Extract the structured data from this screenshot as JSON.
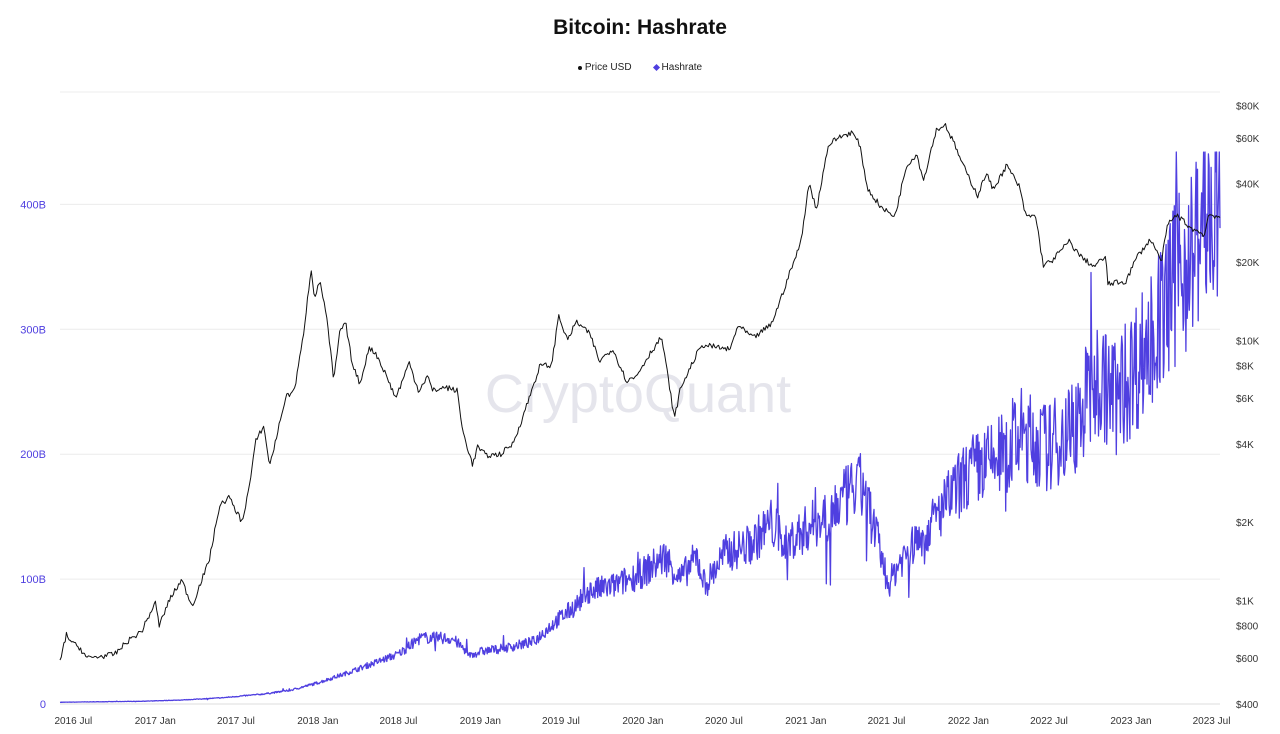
{
  "chart_data": {
    "type": "line",
    "title": "Bitcoin: Hashrate",
    "watermark": "CryptoQuant",
    "legend": [
      {
        "name": "Price USD",
        "color": "#111111",
        "marker": "dot"
      },
      {
        "name": "Hashrate",
        "color": "#4f3fe0",
        "marker": "diamond"
      }
    ],
    "legend_position": "top-center",
    "grid": true,
    "x_ticks": [
      "2016 Jul",
      "2017 Jan",
      "2017 Jul",
      "2018 Jan",
      "2018 Jul",
      "2019 Jan",
      "2019 Jul",
      "2020 Jan",
      "2020 Jul",
      "2021 Jan",
      "2021 Jul",
      "2022 Jan",
      "2022 Jul",
      "2023 Jan",
      "2023 Jul"
    ],
    "x_range": [
      "2016-06-01",
      "2023-07-20"
    ],
    "y_left": {
      "label": "",
      "range": [
        0,
        490000000000
      ],
      "ticks": [
        {
          "value": 0,
          "label": "0"
        },
        {
          "value": 100000000000,
          "label": "100B"
        },
        {
          "value": 200000000000,
          "label": "200B"
        },
        {
          "value": 300000000000,
          "label": "300B"
        },
        {
          "value": 400000000000,
          "label": "400B"
        }
      ],
      "color": "#4f3fe0"
    },
    "y_right": {
      "label": "",
      "scale": "log",
      "range": [
        400,
        90000
      ],
      "ticks": [
        {
          "value": 400,
          "label": "$400"
        },
        {
          "value": 600,
          "label": "$600"
        },
        {
          "value": 800,
          "label": "$800"
        },
        {
          "value": 1000,
          "label": "$1K"
        },
        {
          "value": 2000,
          "label": "$2K"
        },
        {
          "value": 4000,
          "label": "$4K"
        },
        {
          "value": 6000,
          "label": "$6K"
        },
        {
          "value": 8000,
          "label": "$8K"
        },
        {
          "value": 10000,
          "label": "$10K"
        },
        {
          "value": 20000,
          "label": "$20K"
        },
        {
          "value": 40000,
          "label": "$40K"
        },
        {
          "value": 60000,
          "label": "$60K"
        },
        {
          "value": 80000,
          "label": "$80K"
        }
      ],
      "color": "#333333"
    },
    "series": [
      {
        "name": "Price USD",
        "axis": "right",
        "color": "#111111",
        "points": [
          [
            "2016-06-01",
            580
          ],
          [
            "2016-06-15",
            740
          ],
          [
            "2016-07-01",
            680
          ],
          [
            "2016-07-15",
            660
          ],
          [
            "2016-08-01",
            600
          ],
          [
            "2016-09-01",
            610
          ],
          [
            "2016-10-01",
            620
          ],
          [
            "2016-11-01",
            700
          ],
          [
            "2016-12-01",
            760
          ],
          [
            "2017-01-01",
            980
          ],
          [
            "2017-01-10",
            800
          ],
          [
            "2017-02-01",
            1000
          ],
          [
            "2017-03-01",
            1200
          ],
          [
            "2017-03-25",
            950
          ],
          [
            "2017-04-15",
            1200
          ],
          [
            "2017-05-01",
            1400
          ],
          [
            "2017-05-25",
            2300
          ],
          [
            "2017-06-15",
            2500
          ],
          [
            "2017-07-15",
            2000
          ],
          [
            "2017-08-01",
            2800
          ],
          [
            "2017-08-15",
            4100
          ],
          [
            "2017-09-01",
            4700
          ],
          [
            "2017-09-15",
            3300
          ],
          [
            "2017-10-01",
            4300
          ],
          [
            "2017-10-20",
            6000
          ],
          [
            "2017-11-10",
            6500
          ],
          [
            "2017-11-28",
            10000
          ],
          [
            "2017-12-17",
            19000
          ],
          [
            "2017-12-25",
            14500
          ],
          [
            "2018-01-06",
            17000
          ],
          [
            "2018-01-20",
            12500
          ],
          [
            "2018-02-06",
            7000
          ],
          [
            "2018-02-20",
            11000
          ],
          [
            "2018-03-05",
            11500
          ],
          [
            "2018-03-20",
            8000
          ],
          [
            "2018-04-06",
            6800
          ],
          [
            "2018-04-25",
            9300
          ],
          [
            "2018-05-10",
            9000
          ],
          [
            "2018-06-01",
            7500
          ],
          [
            "2018-06-25",
            6000
          ],
          [
            "2018-07-25",
            8200
          ],
          [
            "2018-08-15",
            6400
          ],
          [
            "2018-09-05",
            7300
          ],
          [
            "2018-09-15",
            6400
          ],
          [
            "2018-10-15",
            6600
          ],
          [
            "2018-11-10",
            6400
          ],
          [
            "2018-11-22",
            4500
          ],
          [
            "2018-12-15",
            3300
          ],
          [
            "2018-12-25",
            3900
          ],
          [
            "2019-01-15",
            3600
          ],
          [
            "2019-02-15",
            3650
          ],
          [
            "2019-03-15",
            4000
          ],
          [
            "2019-04-05",
            5000
          ],
          [
            "2019-05-15",
            8000
          ],
          [
            "2019-06-10",
            8000
          ],
          [
            "2019-06-26",
            12500
          ],
          [
            "2019-07-15",
            10000
          ],
          [
            "2019-08-05",
            11800
          ],
          [
            "2019-09-05",
            10500
          ],
          [
            "2019-09-25",
            8300
          ],
          [
            "2019-10-25",
            9300
          ],
          [
            "2019-11-25",
            7000
          ],
          [
            "2019-12-15",
            7200
          ],
          [
            "2020-01-15",
            8800
          ],
          [
            "2020-02-12",
            10300
          ],
          [
            "2020-03-12",
            5000
          ],
          [
            "2020-03-25",
            6500
          ],
          [
            "2020-04-30",
            8800
          ],
          [
            "2020-05-15",
            9600
          ],
          [
            "2020-06-15",
            9400
          ],
          [
            "2020-07-15",
            9200
          ],
          [
            "2020-08-01",
            11400
          ],
          [
            "2020-09-05",
            10200
          ],
          [
            "2020-10-15",
            11500
          ],
          [
            "2020-11-01",
            13700
          ],
          [
            "2020-11-25",
            18000
          ],
          [
            "2020-12-20",
            23500
          ],
          [
            "2021-01-08",
            40000
          ],
          [
            "2021-01-25",
            32000
          ],
          [
            "2021-02-20",
            56000
          ],
          [
            "2021-03-13",
            60000
          ],
          [
            "2021-04-14",
            63000
          ],
          [
            "2021-05-01",
            57000
          ],
          [
            "2021-05-20",
            38000
          ],
          [
            "2021-06-22",
            32000
          ],
          [
            "2021-07-20",
            30000
          ],
          [
            "2021-08-15",
            47000
          ],
          [
            "2021-09-07",
            52000
          ],
          [
            "2021-09-22",
            41000
          ],
          [
            "2021-10-20",
            64000
          ],
          [
            "2021-11-10",
            67500
          ],
          [
            "2021-11-30",
            57000
          ],
          [
            "2021-12-20",
            47000
          ],
          [
            "2022-01-22",
            36000
          ],
          [
            "2022-02-10",
            44000
          ],
          [
            "2022-02-25",
            38000
          ],
          [
            "2022-03-28",
            47000
          ],
          [
            "2022-04-25",
            39000
          ],
          [
            "2022-05-10",
            30000
          ],
          [
            "2022-06-01",
            30000
          ],
          [
            "2022-06-18",
            19500
          ],
          [
            "2022-07-05",
            20000
          ],
          [
            "2022-08-15",
            24000
          ],
          [
            "2022-09-10",
            21000
          ],
          [
            "2022-10-10",
            19200
          ],
          [
            "2022-11-05",
            21000
          ],
          [
            "2022-11-10",
            16500
          ],
          [
            "2022-12-20",
            16800
          ],
          [
            "2023-01-15",
            21000
          ],
          [
            "2023-02-15",
            24500
          ],
          [
            "2023-03-10",
            20000
          ],
          [
            "2023-03-25",
            28000
          ],
          [
            "2023-04-15",
            30300
          ],
          [
            "2023-05-15",
            27000
          ],
          [
            "2023-06-15",
            25500
          ],
          [
            "2023-06-25",
            30500
          ],
          [
            "2023-07-20",
            29800
          ]
        ]
      },
      {
        "name": "Hashrate",
        "axis": "left",
        "color": "#4f3fe0",
        "points": [
          [
            "2016-06-01",
            1400000000
          ],
          [
            "2016-09-01",
            1800000000
          ],
          [
            "2016-12-01",
            2200000000
          ],
          [
            "2017-03-01",
            3200000000
          ],
          [
            "2017-06-01",
            5000000000
          ],
          [
            "2017-09-01",
            8000000000
          ],
          [
            "2017-11-01",
            11000000000
          ],
          [
            "2018-01-01",
            17000000000
          ],
          [
            "2018-03-01",
            24000000000
          ],
          [
            "2018-05-01",
            32000000000
          ],
          [
            "2018-07-01",
            40000000000
          ],
          [
            "2018-08-20",
            53000000000
          ],
          [
            "2018-10-01",
            53000000000
          ],
          [
            "2018-11-01",
            52000000000
          ],
          [
            "2018-12-10",
            39000000000
          ],
          [
            "2019-01-01",
            42000000000
          ],
          [
            "2019-03-01",
            45000000000
          ],
          [
            "2019-05-01",
            50000000000
          ],
          [
            "2019-06-15",
            65000000000
          ],
          [
            "2019-08-01",
            78000000000
          ],
          [
            "2019-09-01",
            90000000000
          ],
          [
            "2019-11-01",
            95000000000
          ],
          [
            "2020-01-01",
            105000000000
          ],
          [
            "2020-02-20",
            118000000000
          ],
          [
            "2020-03-25",
            100000000000
          ],
          [
            "2020-05-01",
            118000000000
          ],
          [
            "2020-05-20",
            95000000000
          ],
          [
            "2020-07-01",
            120000000000
          ],
          [
            "2020-09-01",
            128000000000
          ],
          [
            "2020-10-15",
            145000000000
          ],
          [
            "2020-11-15",
            128000000000
          ],
          [
            "2021-01-01",
            140000000000
          ],
          [
            "2021-03-01",
            155000000000
          ],
          [
            "2021-04-15",
            170000000000
          ],
          [
            "2021-05-10",
            175000000000
          ],
          [
            "2021-06-15",
            125000000000
          ],
          [
            "2021-07-05",
            95000000000
          ],
          [
            "2021-08-01",
            115000000000
          ],
          [
            "2021-10-01",
            140000000000
          ],
          [
            "2021-12-01",
            170000000000
          ],
          [
            "2022-01-01",
            185000000000
          ],
          [
            "2022-03-01",
            195000000000
          ],
          [
            "2022-05-01",
            215000000000
          ],
          [
            "2022-07-01",
            205000000000
          ],
          [
            "2022-09-01",
            225000000000
          ],
          [
            "2022-10-15",
            260000000000
          ],
          [
            "2022-12-01",
            245000000000
          ],
          [
            "2023-01-01",
            265000000000
          ],
          [
            "2023-03-01",
            300000000000
          ],
          [
            "2023-04-15",
            340000000000
          ],
          [
            "2023-05-15",
            360000000000
          ],
          [
            "2023-06-15",
            385000000000
          ],
          [
            "2023-07-20",
            390000000000
          ]
        ]
      }
    ]
  }
}
